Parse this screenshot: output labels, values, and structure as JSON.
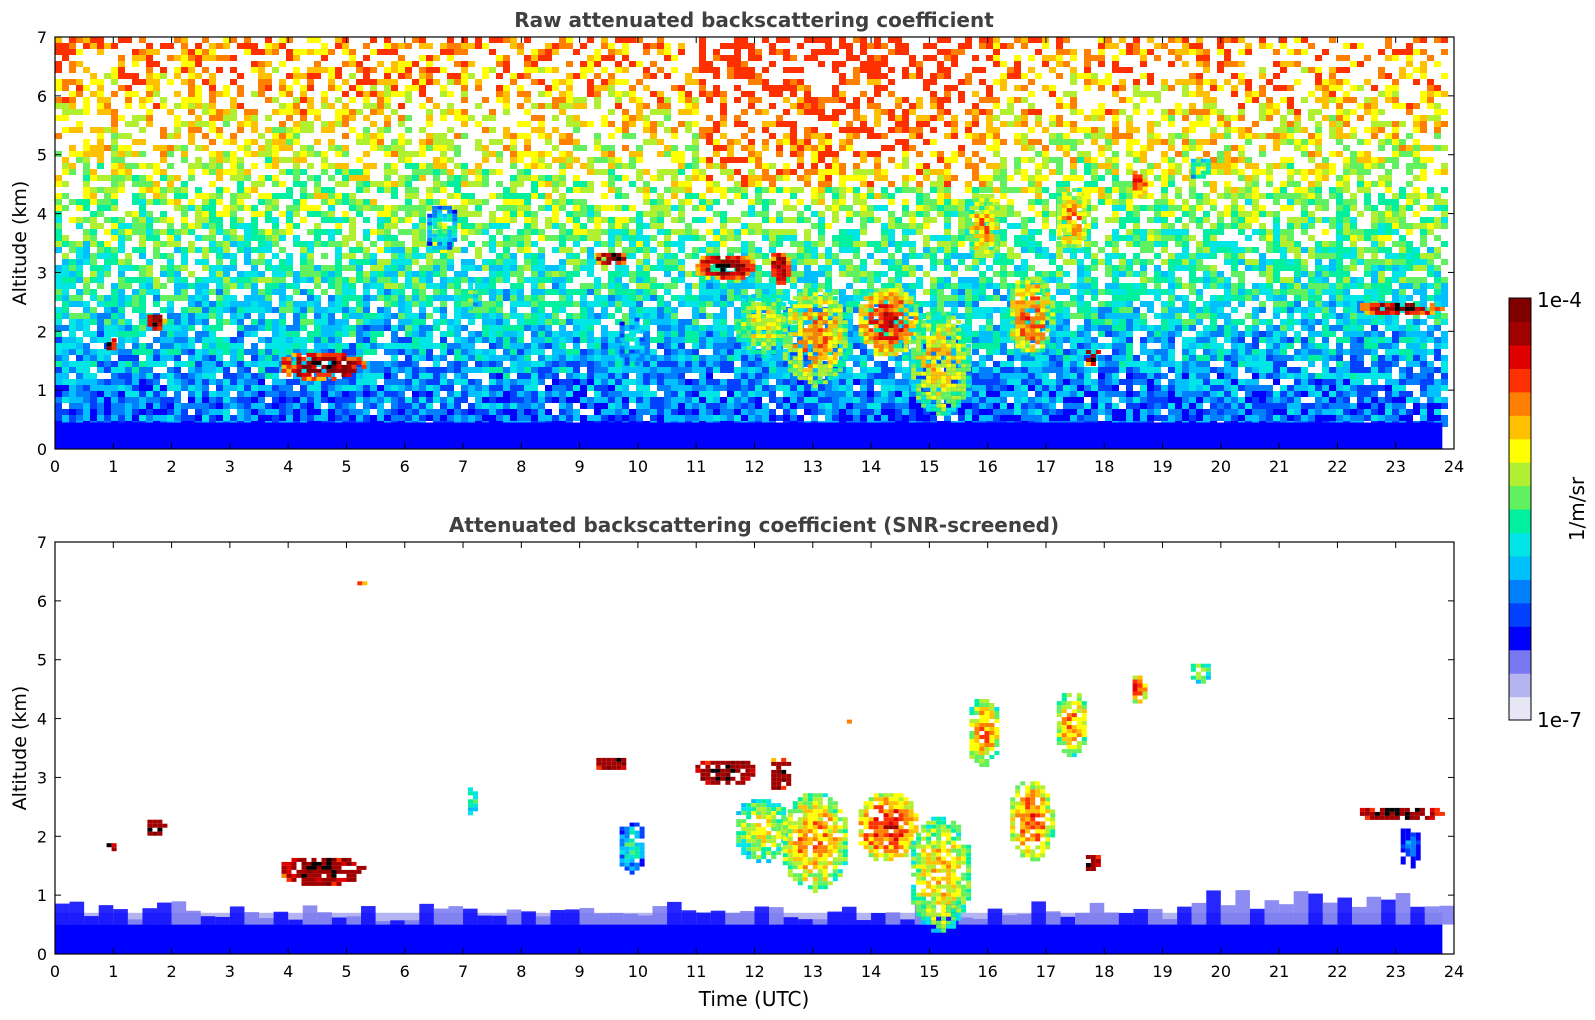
{
  "figure": {
    "colorbar": {
      "label": "1/m/sr",
      "max_label": "1e-4",
      "min_label": "1e-7",
      "colors": [
        "#e6e6f5",
        "#b4b4f0",
        "#7878f0",
        "#0000ff",
        "#0040ff",
        "#0080ff",
        "#00c0ff",
        "#00e6e6",
        "#00f0a0",
        "#60f060",
        "#b0f030",
        "#ffff00",
        "#ffc000",
        "#ff8000",
        "#ff3000",
        "#e00000",
        "#a00000",
        "#800000"
      ]
    }
  },
  "chart_data": [
    {
      "type": "heatmap",
      "title": "Raw attenuated backscattering coefficient",
      "xlabel": "",
      "ylabel": "Altitude (km)",
      "xlim": [
        0,
        24
      ],
      "ylim": [
        0,
        7
      ],
      "xticks": [
        "0",
        "1",
        "2",
        "3",
        "4",
        "5",
        "6",
        "7",
        "8",
        "9",
        "10",
        "11",
        "12",
        "13",
        "14",
        "15",
        "16",
        "17",
        "18",
        "19",
        "20",
        "21",
        "22",
        "23",
        "24"
      ],
      "yticks": [
        "0",
        "1",
        "2",
        "3",
        "4",
        "5",
        "6",
        "7"
      ],
      "data_end_time": 23.8,
      "background": "noisy",
      "cloud_features": [
        {
          "t0": 0.8,
          "t1": 1.0,
          "z0": 1.7,
          "z1": 1.95,
          "level": 1.0
        },
        {
          "t0": 1.5,
          "t1": 1.85,
          "z0": 2.05,
          "z1": 2.35,
          "level": 1.0
        },
        {
          "t0": 3.8,
          "t1": 5.3,
          "z0": 1.2,
          "z1": 1.7,
          "level": 1.0
        },
        {
          "t0": 9.2,
          "t1": 9.8,
          "z0": 3.15,
          "z1": 3.4,
          "level": 1.0
        },
        {
          "t0": 10.9,
          "t1": 12.0,
          "z0": 2.9,
          "z1": 3.35,
          "level": 1.0
        },
        {
          "t0": 12.2,
          "t1": 12.6,
          "z0": 2.8,
          "z1": 3.4,
          "level": 0.95
        },
        {
          "t0": 11.6,
          "t1": 12.6,
          "z0": 1.6,
          "z1": 2.7,
          "level": 0.65
        },
        {
          "t0": 12.4,
          "t1": 13.6,
          "z0": 1.1,
          "z1": 2.8,
          "level": 0.75
        },
        {
          "t0": 13.7,
          "t1": 14.8,
          "z0": 1.6,
          "z1": 2.8,
          "level": 0.85
        },
        {
          "t0": 14.6,
          "t1": 15.7,
          "z0": 0.6,
          "z1": 2.4,
          "level": 0.7
        },
        {
          "t0": 15.6,
          "t1": 16.2,
          "z0": 3.2,
          "z1": 4.4,
          "level": 0.75
        },
        {
          "t0": 16.3,
          "t1": 17.1,
          "z0": 1.6,
          "z1": 3.0,
          "level": 0.8
        },
        {
          "t0": 17.1,
          "t1": 17.7,
          "z0": 3.4,
          "z1": 4.5,
          "level": 0.75
        },
        {
          "t0": 17.6,
          "t1": 17.9,
          "z0": 1.45,
          "z1": 1.75,
          "level": 1.0
        },
        {
          "t0": 18.4,
          "t1": 18.7,
          "z0": 4.3,
          "z1": 4.8,
          "level": 0.85
        },
        {
          "t0": 19.4,
          "t1": 19.8,
          "z0": 4.6,
          "z1": 5.0,
          "level": 0.6
        },
        {
          "t0": 22.3,
          "t1": 23.8,
          "z0": 2.3,
          "z1": 2.55,
          "level": 1.0
        },
        {
          "t0": 7.0,
          "t1": 7.2,
          "z0": 2.4,
          "z1": 2.9,
          "level": 0.55
        },
        {
          "t0": 6.3,
          "t1": 6.9,
          "z0": 3.4,
          "z1": 4.2,
          "level": 0.5
        },
        {
          "t0": 9.6,
          "t1": 10.1,
          "z0": 1.4,
          "z1": 2.3,
          "level": 0.45
        }
      ]
    },
    {
      "type": "heatmap",
      "title": "Attenuated backscattering coefficient (SNR-screened)",
      "xlabel": "Time (UTC)",
      "ylabel": "Altitude (km)",
      "xlim": [
        0,
        24
      ],
      "ylim": [
        0,
        7
      ],
      "xticks": [
        "0",
        "1",
        "2",
        "3",
        "4",
        "5",
        "6",
        "7",
        "8",
        "9",
        "10",
        "11",
        "12",
        "13",
        "14",
        "15",
        "16",
        "17",
        "18",
        "19",
        "20",
        "21",
        "22",
        "23",
        "24"
      ],
      "yticks": [
        "0",
        "1",
        "2",
        "3",
        "4",
        "5",
        "6",
        "7"
      ],
      "data_end_time": 23.8,
      "background": "screened",
      "cloud_features": [
        {
          "t0": 0.8,
          "t1": 1.0,
          "z0": 1.7,
          "z1": 1.95,
          "level": 1.1
        },
        {
          "t0": 1.5,
          "t1": 1.85,
          "z0": 2.05,
          "z1": 2.35,
          "level": 1.1
        },
        {
          "t0": 3.8,
          "t1": 5.3,
          "z0": 1.2,
          "z1": 1.7,
          "level": 1.1
        },
        {
          "t0": 9.2,
          "t1": 9.8,
          "z0": 3.15,
          "z1": 3.4,
          "level": 1.1
        },
        {
          "t0": 10.9,
          "t1": 12.0,
          "z0": 2.9,
          "z1": 3.35,
          "level": 1.1
        },
        {
          "t0": 12.2,
          "t1": 12.6,
          "z0": 2.8,
          "z1": 3.4,
          "level": 1.05
        },
        {
          "t0": 11.6,
          "t1": 12.6,
          "z0": 1.6,
          "z1": 2.7,
          "level": 0.65
        },
        {
          "t0": 12.4,
          "t1": 13.6,
          "z0": 1.1,
          "z1": 2.8,
          "level": 0.75
        },
        {
          "t0": 13.7,
          "t1": 14.8,
          "z0": 1.6,
          "z1": 2.8,
          "level": 0.85
        },
        {
          "t0": 14.6,
          "t1": 15.7,
          "z0": 0.4,
          "z1": 2.4,
          "level": 0.7
        },
        {
          "t0": 15.6,
          "t1": 16.2,
          "z0": 3.2,
          "z1": 4.4,
          "level": 0.75
        },
        {
          "t0": 16.3,
          "t1": 17.1,
          "z0": 1.6,
          "z1": 3.0,
          "level": 0.8
        },
        {
          "t0": 17.1,
          "t1": 17.7,
          "z0": 3.4,
          "z1": 4.5,
          "level": 0.75
        },
        {
          "t0": 17.6,
          "t1": 17.9,
          "z0": 1.45,
          "z1": 1.75,
          "level": 1.1
        },
        {
          "t0": 18.4,
          "t1": 18.7,
          "z0": 4.3,
          "z1": 4.8,
          "level": 0.85
        },
        {
          "t0": 19.4,
          "t1": 19.8,
          "z0": 4.6,
          "z1": 5.0,
          "level": 0.6
        },
        {
          "t0": 22.3,
          "t1": 23.8,
          "z0": 2.3,
          "z1": 2.55,
          "level": 1.1
        },
        {
          "t0": 23.0,
          "t1": 23.4,
          "z0": 1.5,
          "z1": 2.2,
          "level": 0.3
        },
        {
          "t0": 7.0,
          "t1": 7.2,
          "z0": 2.4,
          "z1": 2.9,
          "level": 0.55
        },
        {
          "t0": 9.6,
          "t1": 10.1,
          "z0": 1.4,
          "z1": 2.3,
          "level": 0.45
        },
        {
          "t0": 13.5,
          "t1": 13.7,
          "z0": 3.95,
          "z1": 4.05,
          "level": 0.85
        },
        {
          "t0": 5.1,
          "t1": 5.3,
          "z0": 6.3,
          "z1": 6.4,
          "level": 0.85
        }
      ]
    }
  ]
}
